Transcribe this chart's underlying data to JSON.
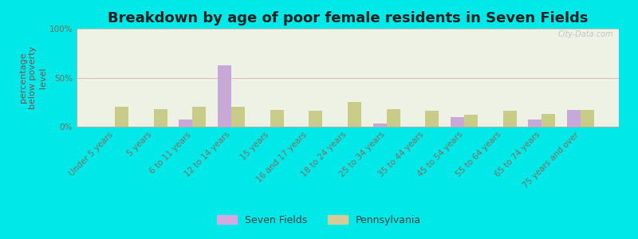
{
  "title": "Breakdown by age of poor female residents in Seven Fields",
  "ylabel": "percentage\nbelow poverty\nlevel",
  "categories": [
    "Under 5 years",
    "5 years",
    "6 to 11 years",
    "12 to 14 years",
    "15 years",
    "16 and 17 years",
    "18 to 24 years",
    "25 to 34 years",
    "35 to 44 years",
    "45 to 54 years",
    "55 to 64 years",
    "65 to 74 years",
    "75 years and over"
  ],
  "seven_fields": [
    0,
    0,
    7,
    63,
    0,
    0,
    0,
    3,
    0,
    10,
    0,
    7,
    17
  ],
  "pennsylvania": [
    20,
    18,
    20,
    20,
    17,
    16,
    25,
    18,
    16,
    12,
    16,
    13,
    17
  ],
  "seven_fields_color": "#c8a8d8",
  "pennsylvania_color": "#c8cc88",
  "background_color": "#00e8e8",
  "plot_bg_color": "#eef2e4",
  "ylim": [
    0,
    100
  ],
  "yticks": [
    0,
    50,
    100
  ],
  "ytick_labels": [
    "0%",
    "50%",
    "100%"
  ],
  "bar_width": 0.35,
  "title_fontsize": 13,
  "axis_label_fontsize": 8,
  "tick_fontsize": 7.5,
  "legend_label_sf": "Seven Fields",
  "legend_label_pa": "Pennsylvania",
  "watermark": "City-Data.com",
  "legend_marker_color_sf": "#d4a8e0",
  "legend_marker_color_pa": "#d4cc98"
}
